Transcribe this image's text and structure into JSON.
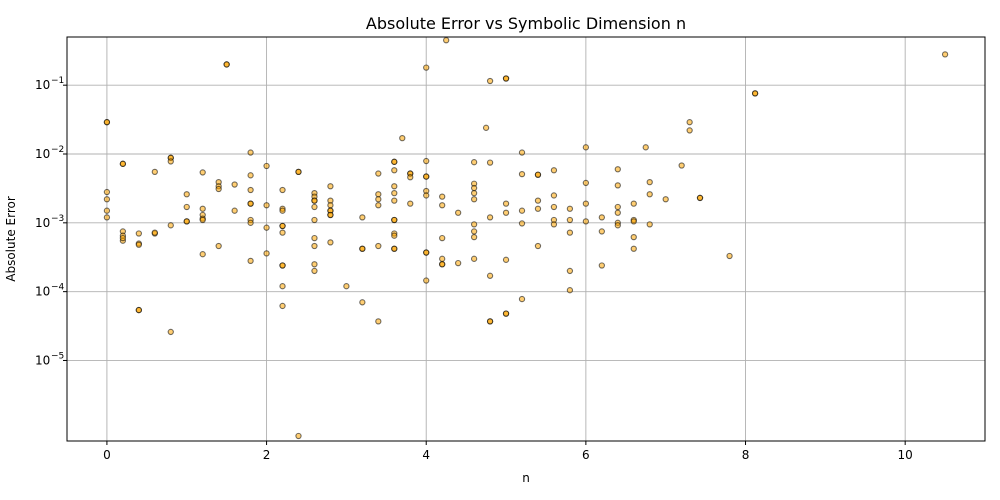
{
  "chart_data": {
    "type": "scatter",
    "title": "Absolute Error vs Symbolic Dimension n",
    "xlabel": "n",
    "ylabel": "Absolute Error",
    "xscale": "linear",
    "yscale": "log",
    "xlim": [
      -0.5,
      11.0
    ],
    "ylim_log10": [
      -6.17,
      -0.3
    ],
    "xticks": [
      0,
      2,
      4,
      6,
      8,
      10
    ],
    "xtick_labels": [
      "0",
      "2",
      "4",
      "6",
      "8",
      "10"
    ],
    "yticks_exponent": [
      -5,
      -4,
      -3,
      -2,
      -1
    ],
    "ytick_labels": [
      "10",
      "10",
      "10",
      "10",
      "10"
    ],
    "ytick_superscripts": [
      "−5",
      "−4",
      "−3",
      "−2",
      "−1"
    ],
    "grid": true,
    "marker_fill": "#FFA500",
    "marker_alpha": 0.55,
    "marker_edge": "#000000",
    "points": [
      [
        0,
        0.029
      ],
      [
        0,
        0.029
      ],
      [
        0,
        0.0028
      ],
      [
        0,
        0.0022
      ],
      [
        0,
        0.0015
      ],
      [
        0,
        0.0012
      ],
      [
        0.2,
        0.0072
      ],
      [
        0.2,
        0.0072
      ],
      [
        0.2,
        0.00075
      ],
      [
        0.2,
        0.00065
      ],
      [
        0.2,
        0.00055
      ],
      [
        0.2,
        0.0006
      ],
      [
        0.4,
        0.0007
      ],
      [
        0.4,
        0.0005
      ],
      [
        0.4,
        0.00048
      ],
      [
        0.4,
        5.4e-05
      ],
      [
        0.4,
        5.4e-05
      ],
      [
        0.6,
        0.0055
      ],
      [
        0.6,
        0.0007
      ],
      [
        0.6,
        0.00072
      ],
      [
        0.8,
        0.0088
      ],
      [
        0.8,
        0.0088
      ],
      [
        0.8,
        0.0078
      ],
      [
        0.8,
        0.00092
      ],
      [
        0.8,
        2.6e-05
      ],
      [
        1.0,
        0.0026
      ],
      [
        1.0,
        0.0017
      ],
      [
        1.0,
        0.00105
      ],
      [
        1.0,
        0.00105
      ],
      [
        1.2,
        0.0054
      ],
      [
        1.2,
        0.0016
      ],
      [
        1.2,
        0.0013
      ],
      [
        1.2,
        0.00115
      ],
      [
        1.2,
        0.0011
      ],
      [
        1.2,
        0.00035
      ],
      [
        1.4,
        0.0039
      ],
      [
        1.4,
        0.0034
      ],
      [
        1.4,
        0.0031
      ],
      [
        1.4,
        0.00046
      ],
      [
        1.5,
        0.2
      ],
      [
        1.5,
        0.2
      ],
      [
        1.6,
        0.0036
      ],
      [
        1.6,
        0.0015
      ],
      [
        1.8,
        0.0105
      ],
      [
        1.8,
        0.0049
      ],
      [
        1.8,
        0.003
      ],
      [
        1.8,
        0.0019
      ],
      [
        1.8,
        0.0019
      ],
      [
        1.8,
        0.0011
      ],
      [
        1.8,
        0.001
      ],
      [
        1.8,
        0.00028
      ],
      [
        2.0,
        0.0067
      ],
      [
        2.0,
        0.0018
      ],
      [
        2.0,
        0.00085
      ],
      [
        2.0,
        0.00036
      ],
      [
        2.2,
        0.003
      ],
      [
        2.2,
        0.0016
      ],
      [
        2.2,
        0.0015
      ],
      [
        2.2,
        0.0009
      ],
      [
        2.2,
        0.0009
      ],
      [
        2.2,
        0.00072
      ],
      [
        2.2,
        0.00024
      ],
      [
        2.2,
        0.00024
      ],
      [
        2.2,
        0.00012
      ],
      [
        2.2,
        6.2e-05
      ],
      [
        2.4,
        0.0055
      ],
      [
        2.4,
        0.0055
      ],
      [
        2.4,
        8e-07
      ],
      [
        2.6,
        0.0027
      ],
      [
        2.6,
        0.0024
      ],
      [
        2.6,
        0.0021
      ],
      [
        2.6,
        0.0021
      ],
      [
        2.6,
        0.0017
      ],
      [
        2.6,
        0.0011
      ],
      [
        2.6,
        0.0006
      ],
      [
        2.6,
        0.00046
      ],
      [
        2.6,
        0.00025
      ],
      [
        2.6,
        0.0002
      ],
      [
        2.8,
        0.0034
      ],
      [
        2.8,
        0.0021
      ],
      [
        2.8,
        0.0018
      ],
      [
        2.8,
        0.0015
      ],
      [
        2.8,
        0.0015
      ],
      [
        2.8,
        0.0013
      ],
      [
        2.8,
        0.0013
      ],
      [
        2.8,
        0.00052
      ],
      [
        3.0,
        0.00012
      ],
      [
        3.2,
        0.0012
      ],
      [
        3.2,
        0.00042
      ],
      [
        3.2,
        0.00042
      ],
      [
        3.2,
        7e-05
      ],
      [
        3.4,
        0.0052
      ],
      [
        3.4,
        0.0026
      ],
      [
        3.4,
        0.0022
      ],
      [
        3.4,
        0.0018
      ],
      [
        3.4,
        0.00046
      ],
      [
        3.4,
        3.7e-05
      ],
      [
        3.6,
        0.0077
      ],
      [
        3.6,
        0.0077
      ],
      [
        3.6,
        0.0058
      ],
      [
        3.6,
        0.0034
      ],
      [
        3.6,
        0.0027
      ],
      [
        3.6,
        0.0021
      ],
      [
        3.6,
        0.0011
      ],
      [
        3.6,
        0.0011
      ],
      [
        3.6,
        0.0007
      ],
      [
        3.6,
        0.00065
      ],
      [
        3.6,
        0.00042
      ],
      [
        3.6,
        0.00042
      ],
      [
        3.7,
        0.017
      ],
      [
        3.8,
        0.0052
      ],
      [
        3.8,
        0.0052
      ],
      [
        3.8,
        0.0046
      ],
      [
        3.8,
        0.0019
      ],
      [
        4.0,
        0.18
      ],
      [
        4.0,
        0.0079
      ],
      [
        4.0,
        0.0047
      ],
      [
        4.0,
        0.0047
      ],
      [
        4.0,
        0.0029
      ],
      [
        4.0,
        0.0025
      ],
      [
        4.0,
        0.00037
      ],
      [
        4.0,
        0.00037
      ],
      [
        4.0,
        0.000145
      ],
      [
        4.2,
        0.0024
      ],
      [
        4.2,
        0.0018
      ],
      [
        4.2,
        0.0006
      ],
      [
        4.2,
        0.0003
      ],
      [
        4.2,
        0.00025
      ],
      [
        4.2,
        0.00025
      ],
      [
        4.25,
        0.45
      ],
      [
        4.4,
        0.0014
      ],
      [
        4.4,
        0.00026
      ],
      [
        4.6,
        0.0076
      ],
      [
        4.6,
        0.0037
      ],
      [
        4.6,
        0.0032
      ],
      [
        4.6,
        0.0027
      ],
      [
        4.6,
        0.0022
      ],
      [
        4.6,
        0.00095
      ],
      [
        4.6,
        0.00075
      ],
      [
        4.6,
        0.00062
      ],
      [
        4.6,
        0.0003
      ],
      [
        4.75,
        0.024
      ],
      [
        4.8,
        0.115
      ],
      [
        4.8,
        0.0075
      ],
      [
        4.8,
        0.0012
      ],
      [
        4.8,
        0.00017
      ],
      [
        4.8,
        3.7e-05
      ],
      [
        4.8,
        3.7e-05
      ],
      [
        5.0,
        0.125
      ],
      [
        5.0,
        0.125
      ],
      [
        5.0,
        0.0019
      ],
      [
        5.0,
        0.0014
      ],
      [
        5.0,
        0.00029
      ],
      [
        5.0,
        4.8e-05
      ],
      [
        5.0,
        4.8e-05
      ],
      [
        5.2,
        0.0105
      ],
      [
        5.2,
        0.0051
      ],
      [
        5.2,
        0.0015
      ],
      [
        5.2,
        0.00098
      ],
      [
        5.2,
        7.8e-05
      ],
      [
        5.4,
        0.005
      ],
      [
        5.4,
        0.005
      ],
      [
        5.4,
        0.0021
      ],
      [
        5.4,
        0.0016
      ],
      [
        5.4,
        0.00046
      ],
      [
        5.6,
        0.0058
      ],
      [
        5.6,
        0.0025
      ],
      [
        5.6,
        0.0017
      ],
      [
        5.6,
        0.0011
      ],
      [
        5.6,
        0.00095
      ],
      [
        5.8,
        0.0016
      ],
      [
        5.8,
        0.0011
      ],
      [
        5.8,
        0.00072
      ],
      [
        5.8,
        0.0002
      ],
      [
        5.8,
        0.000105
      ],
      [
        6.0,
        0.0125
      ],
      [
        6.0,
        0.0038
      ],
      [
        6.0,
        0.0019
      ],
      [
        6.0,
        0.00105
      ],
      [
        6.2,
        0.0012
      ],
      [
        6.2,
        0.00075
      ],
      [
        6.2,
        0.00024
      ],
      [
        6.4,
        0.006
      ],
      [
        6.4,
        0.0035
      ],
      [
        6.4,
        0.0017
      ],
      [
        6.4,
        0.0014
      ],
      [
        6.4,
        0.001
      ],
      [
        6.4,
        0.00092
      ],
      [
        6.6,
        0.0019
      ],
      [
        6.6,
        0.0011
      ],
      [
        6.6,
        0.00105
      ],
      [
        6.6,
        0.00062
      ],
      [
        6.6,
        0.00042
      ],
      [
        6.75,
        0.0125
      ],
      [
        6.8,
        0.0039
      ],
      [
        6.8,
        0.0026
      ],
      [
        6.8,
        0.00095
      ],
      [
        7.0,
        0.0022
      ],
      [
        7.2,
        0.0068
      ],
      [
        7.3,
        0.029
      ],
      [
        7.3,
        0.022
      ],
      [
        7.43,
        0.0023
      ],
      [
        7.43,
        0.0023
      ],
      [
        7.8,
        0.00033
      ],
      [
        8.12,
        0.076
      ],
      [
        8.12,
        0.076
      ],
      [
        10.5,
        0.28
      ]
    ]
  }
}
